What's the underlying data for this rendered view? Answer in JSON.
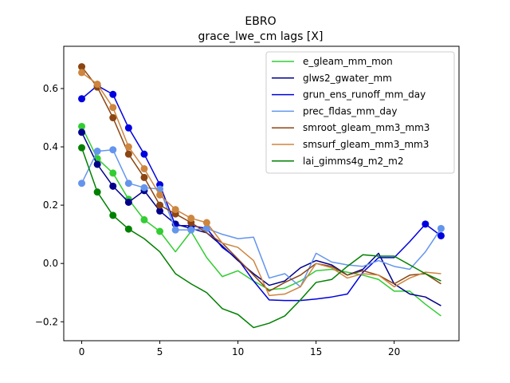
{
  "chart_data": {
    "type": "line",
    "title": "EBRO",
    "subtitle": "grace_lwe_cm lags [X]",
    "xlabel": "",
    "ylabel": "",
    "xlim": [
      -1.15,
      24.15
    ],
    "ylim": [
      -0.265,
      0.745
    ],
    "xticks": [
      0,
      5,
      10,
      15,
      20
    ],
    "yticks": [
      -0.2,
      0.0,
      0.2,
      0.4,
      0.6
    ],
    "ytick_labels": [
      "−0.2",
      "0.0",
      "0.2",
      "0.4",
      "0.6"
    ],
    "legend_position": "upper right",
    "grid": false,
    "series": [
      {
        "name": "e_gleam_mm_mon",
        "color": "#32cd32",
        "x": [
          0,
          1,
          2,
          3,
          4,
          5,
          6,
          7,
          8,
          9,
          10,
          11,
          12,
          13,
          14,
          15,
          16,
          17,
          18,
          19,
          20,
          21,
          22,
          23
        ],
        "y": [
          0.47,
          0.36,
          0.31,
          0.22,
          0.15,
          0.11,
          0.04,
          0.11,
          0.02,
          -0.045,
          -0.025,
          -0.06,
          -0.09,
          -0.085,
          -0.06,
          -0.025,
          -0.02,
          -0.03,
          -0.04,
          -0.055,
          -0.095,
          -0.095,
          -0.14,
          -0.18
        ],
        "markers": [
          0,
          1,
          2,
          3,
          4,
          5
        ]
      },
      {
        "name": "glws2_gwater_mm",
        "color": "#00008b",
        "x": [
          0,
          1,
          2,
          3,
          4,
          5,
          6,
          7,
          8,
          9,
          10,
          11,
          12,
          13,
          14,
          15,
          16,
          17,
          18,
          19,
          20,
          21,
          22,
          23
        ],
        "y": [
          0.45,
          0.34,
          0.265,
          0.21,
          0.25,
          0.18,
          0.135,
          0.12,
          0.105,
          0.06,
          0.01,
          -0.035,
          -0.075,
          -0.06,
          -0.015,
          0.01,
          -0.005,
          -0.04,
          -0.02,
          0.035,
          -0.07,
          -0.105,
          -0.115,
          -0.145
        ],
        "markers": [
          0,
          1,
          2,
          3,
          4,
          5,
          6,
          7
        ]
      },
      {
        "name": "grun_ens_runoff_mm_day",
        "color": "#0000e0",
        "x": [
          0,
          1,
          2,
          3,
          4,
          5,
          6,
          7,
          8,
          9,
          10,
          11,
          12,
          13,
          14,
          15,
          16,
          17,
          18,
          19,
          20,
          21,
          22,
          23
        ],
        "y": [
          0.565,
          0.61,
          0.58,
          0.465,
          0.375,
          0.27,
          0.13,
          0.13,
          0.12,
          0.055,
          0.015,
          -0.06,
          -0.125,
          -0.127,
          -0.127,
          -0.122,
          -0.115,
          -0.105,
          -0.03,
          0.02,
          0.02,
          0.075,
          0.135,
          0.095
        ],
        "markers": [
          0,
          1,
          2,
          3,
          4,
          5,
          22,
          23
        ]
      },
      {
        "name": "prec_fldas_mm_day",
        "color": "#6495ed",
        "x": [
          0,
          1,
          2,
          3,
          4,
          5,
          6,
          7,
          8,
          9,
          10,
          11,
          12,
          13,
          14,
          15,
          16,
          17,
          18,
          19,
          20,
          21,
          22,
          23
        ],
        "y": [
          0.275,
          0.385,
          0.39,
          0.275,
          0.26,
          0.255,
          0.115,
          0.115,
          0.12,
          0.1,
          0.085,
          0.09,
          -0.05,
          -0.035,
          -0.08,
          0.035,
          0.005,
          -0.005,
          -0.01,
          0.01,
          -0.01,
          -0.02,
          0.04,
          0.12
        ],
        "markers": [
          0,
          1,
          2,
          3,
          4,
          5,
          6,
          7,
          8,
          23
        ]
      },
      {
        "name": "smroot_gleam_mm3_mm3",
        "color": "#8b4513",
        "x": [
          0,
          1,
          2,
          3,
          4,
          5,
          6,
          7,
          8,
          9,
          10,
          11,
          12,
          13,
          14,
          15,
          16,
          17,
          18,
          19,
          20,
          21,
          22,
          23
        ],
        "y": [
          0.675,
          0.605,
          0.5,
          0.375,
          0.295,
          0.2,
          0.17,
          0.14,
          0.105,
          0.07,
          0.015,
          -0.04,
          -0.095,
          -0.065,
          -0.04,
          0.0,
          -0.01,
          -0.04,
          -0.025,
          -0.04,
          -0.07,
          -0.04,
          -0.035,
          -0.07
        ],
        "markers": [
          0,
          1,
          2,
          3,
          4,
          5,
          6,
          7
        ]
      },
      {
        "name": "smsurf_gleam_mm3_mm3",
        "color": "#cd853f",
        "x": [
          0,
          1,
          2,
          3,
          4,
          5,
          6,
          7,
          8,
          9,
          10,
          11,
          12,
          13,
          14,
          15,
          16,
          17,
          18,
          19,
          20,
          21,
          22,
          23
        ],
        "y": [
          0.655,
          0.615,
          0.535,
          0.4,
          0.325,
          0.235,
          0.185,
          0.155,
          0.14,
          0.07,
          0.055,
          0.01,
          -0.11,
          -0.105,
          -0.08,
          0.0,
          -0.015,
          -0.05,
          -0.035,
          -0.04,
          -0.08,
          -0.05,
          -0.03,
          -0.035
        ],
        "markers": [
          0,
          1,
          2,
          3,
          4,
          5,
          6,
          7,
          8
        ]
      },
      {
        "name": "lai_gimms4g_m2_m2",
        "color": "#008000",
        "x": [
          0,
          1,
          2,
          3,
          4,
          5,
          6,
          7,
          8,
          9,
          10,
          11,
          12,
          13,
          14,
          15,
          16,
          17,
          18,
          19,
          20,
          21,
          22,
          23
        ],
        "y": [
          0.397,
          0.245,
          0.165,
          0.118,
          0.085,
          0.04,
          -0.035,
          -0.07,
          -0.1,
          -0.155,
          -0.175,
          -0.22,
          -0.205,
          -0.18,
          -0.125,
          -0.065,
          -0.055,
          -0.01,
          0.03,
          0.025,
          0.025,
          -0.005,
          -0.035,
          -0.06
        ],
        "markers": [
          0,
          1,
          2,
          3
        ]
      }
    ]
  }
}
